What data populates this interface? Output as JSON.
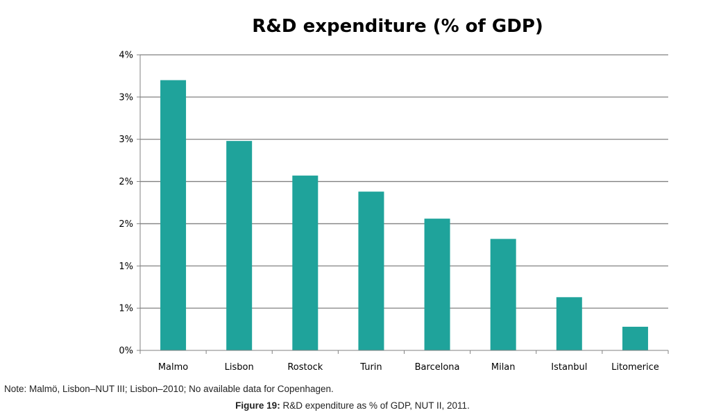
{
  "colors": {
    "bar": "#1fa39b",
    "gridline": "#808080",
    "axis": "#808080"
  },
  "chart_data": {
    "type": "bar",
    "title": "R&D expenditure (% of GDP)",
    "categories": [
      "Malmo",
      "Lisbon",
      "Rostock",
      "Turin",
      "Barcelona",
      "Milan",
      "Istanbul",
      "Litomerice"
    ],
    "values": [
      3.2,
      2.48,
      2.07,
      1.88,
      1.56,
      1.32,
      0.63,
      0.28
    ],
    "ylim": [
      0,
      3.5
    ],
    "y_ticks": [
      0,
      0.5,
      1,
      1.5,
      2,
      2.5,
      3,
      3.5
    ],
    "y_tick_labels": [
      "0%",
      "1%",
      "1%",
      "2%",
      "2%",
      "3%",
      "3%",
      "4%"
    ],
    "grid": true,
    "xlabel": "",
    "ylabel": ""
  },
  "note": "Note: Malmö, Lisbon–NUT III; Lisbon–2010; No available data for Copenhagen.",
  "caption": {
    "label": "Figure 19:",
    "text": " R&D expenditure as % of GDP, NUT II, 2011."
  }
}
